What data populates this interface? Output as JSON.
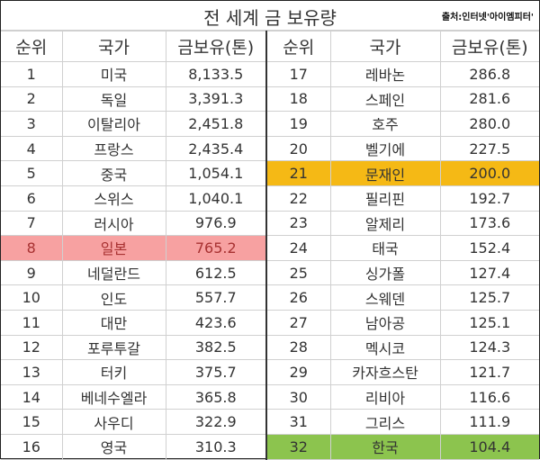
{
  "title": "전 세계 금 보유량",
  "source": "출처:인터넷'아이엠피터'",
  "headers": [
    "순위",
    "국가",
    "금보유(톤)",
    "순위",
    "국가",
    "금보유(톤)"
  ],
  "highlight_colors": {
    "japan": "#f7a1a1",
    "moon": "#f5b915",
    "korea": "#8cc44e"
  },
  "rows": [
    {
      "rank": "1",
      "country": "미국",
      "tons": "8,133.5"
    },
    {
      "rank": "2",
      "country": "독일",
      "tons": "3,391.3"
    },
    {
      "rank": "3",
      "country": "이탈리아",
      "tons": "2,451.8"
    },
    {
      "rank": "4",
      "country": "프랑스",
      "tons": "2,435.4"
    },
    {
      "rank": "5",
      "country": "중국",
      "tons": "1,054.1"
    },
    {
      "rank": "6",
      "country": "스위스",
      "tons": "1,040.1"
    },
    {
      "rank": "7",
      "country": "러시아",
      "tons": "976.9"
    },
    {
      "rank": "8",
      "country": "일본",
      "tons": "765.2",
      "highlight": "japan"
    },
    {
      "rank": "9",
      "country": "네덜란드",
      "tons": "612.5"
    },
    {
      "rank": "10",
      "country": "인도",
      "tons": "557.7"
    },
    {
      "rank": "11",
      "country": "대만",
      "tons": "423.6"
    },
    {
      "rank": "12",
      "country": "포루투갈",
      "tons": "382.5"
    },
    {
      "rank": "13",
      "country": "터키",
      "tons": "375.7"
    },
    {
      "rank": "14",
      "country": "베네수엘라",
      "tons": "365.8"
    },
    {
      "rank": "15",
      "country": "사우디",
      "tons": "322.9"
    },
    {
      "rank": "16",
      "country": "영국",
      "tons": "310.3"
    },
    {
      "rank": "17",
      "country": "레바논",
      "tons": "286.8"
    },
    {
      "rank": "18",
      "country": "스페인",
      "tons": "281.6"
    },
    {
      "rank": "19",
      "country": "호주",
      "tons": "280.0"
    },
    {
      "rank": "20",
      "country": "벨기에",
      "tons": "227.5"
    },
    {
      "rank": "21",
      "country": "문재인",
      "tons": "200.0",
      "highlight": "moon"
    },
    {
      "rank": "22",
      "country": "필리핀",
      "tons": "192.7"
    },
    {
      "rank": "23",
      "country": "알제리",
      "tons": "173.6"
    },
    {
      "rank": "24",
      "country": "태국",
      "tons": "152.4"
    },
    {
      "rank": "25",
      "country": "싱가폴",
      "tons": "127.4"
    },
    {
      "rank": "26",
      "country": "스웨덴",
      "tons": "125.7"
    },
    {
      "rank": "27",
      "country": "남아공",
      "tons": "125.1"
    },
    {
      "rank": "28",
      "country": "멕시코",
      "tons": "124.3"
    },
    {
      "rank": "29",
      "country": "카자흐스탄",
      "tons": "121.7"
    },
    {
      "rank": "30",
      "country": "리비아",
      "tons": "116.6"
    },
    {
      "rank": "31",
      "country": "그리스",
      "tons": "111.9"
    },
    {
      "rank": "32",
      "country": "한국",
      "tons": "104.4",
      "highlight": "korea"
    }
  ]
}
